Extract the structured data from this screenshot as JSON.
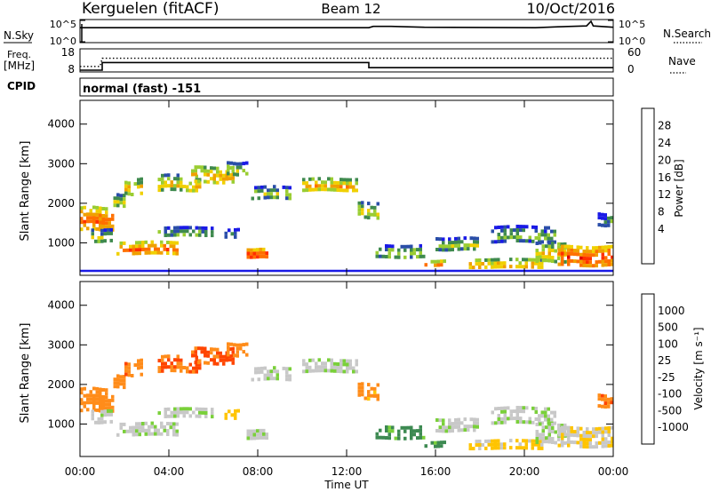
{
  "header": {
    "station": "Kerguelen (fitACF)",
    "beam": "Beam 12",
    "date": "10/Oct/2016"
  },
  "noise_panel": {
    "left_label": "N.Sky",
    "right_label": "N.Search",
    "tick_top": "10^5",
    "tick_bottom": "10^0",
    "sky_level": [
      [
        0,
        3.3
      ],
      [
        13,
        3.3
      ],
      [
        13.2,
        3.6
      ],
      [
        14,
        3.6
      ],
      [
        15.5,
        3.4
      ],
      [
        20.5,
        3.3
      ],
      [
        21.5,
        3.5
      ],
      [
        22.8,
        3.7
      ],
      [
        23,
        4.8
      ],
      [
        23.1,
        3.7
      ],
      [
        24,
        3.4
      ]
    ]
  },
  "freq_panel": {
    "left_label_1": "Freq.",
    "left_label_2": "[MHz]",
    "right_label": "Nave",
    "left_ticks": [
      "18",
      "8"
    ],
    "right_ticks": [
      "60",
      "0"
    ],
    "freq_steps": [
      [
        0,
        8.4
      ],
      [
        1,
        8.4
      ],
      [
        1,
        12.0
      ],
      [
        13,
        12.0
      ],
      [
        13,
        9.6
      ],
      [
        24,
        9.6
      ]
    ],
    "nave_steps": [
      [
        0,
        13
      ],
      [
        0.9,
        13
      ],
      [
        1,
        36
      ],
      [
        24,
        36
      ]
    ]
  },
  "cpid": {
    "label": "CPID",
    "mode": "normal (fast) -151"
  },
  "power_panel": {
    "ylabel": "Slant Range [km]",
    "colorbar_label": "Power [dB]",
    "colorbar_ticks": [
      "28",
      "24",
      "20",
      "16",
      "12",
      "8",
      "4"
    ]
  },
  "velocity_panel": {
    "ylabel": "Slant Range [km]",
    "colorbar_label": "Velocity [m s⁻¹]",
    "colorbar_ticks": [
      "1000",
      "500",
      "100",
      "25",
      "-25",
      "-100",
      "-500",
      "-1000"
    ]
  },
  "time_axis": {
    "label": "Time UT",
    "ticks": [
      "00:00",
      "04:00",
      "08:00",
      "12:00",
      "16:00",
      "20:00",
      "00:00"
    ]
  },
  "range_axis": {
    "ticks": [
      "1000",
      "2000",
      "3000",
      "4000"
    ]
  },
  "chart_data": {
    "type": "heatmap",
    "x_range_hours": [
      0,
      24
    ],
    "y_range_km": [
      180,
      4600
    ],
    "y_ticks": [
      1000,
      2000,
      3000,
      4000
    ],
    "x_ticks_hours": [
      0,
      4,
      8,
      12,
      16,
      20,
      24
    ],
    "power_colorbar": {
      "range": [
        0,
        32
      ],
      "colors": [
        "#1a1ae6",
        "#2a4ea8",
        "#3f8a4e",
        "#9acd32",
        "#f0d000",
        "#f0a000",
        "#ff7000",
        "#ff3000",
        "#e00000"
      ]
    },
    "velocity_colorbar": {
      "levels": [
        -1000,
        -500,
        -100,
        -25,
        25,
        100,
        500,
        1000
      ],
      "colors": [
        "#e00000",
        "#ff4500",
        "#ff8c1a",
        "#ffc400",
        "#c8c8c8",
        "#7ad03a",
        "#3d8a52",
        "#3050a0",
        "#2020c0"
      ]
    },
    "echo_regions": [
      {
        "t0": 0.0,
        "t1": 1.5,
        "r0": 1250,
        "r1": 2000,
        "power": 24,
        "velocity": -300
      },
      {
        "t0": 1.5,
        "t1": 2.0,
        "r0": 1800,
        "r1": 2300,
        "power": 16,
        "velocity": -200
      },
      {
        "t0": 2.0,
        "t1": 2.8,
        "r0": 2100,
        "r1": 2700,
        "power": 18,
        "velocity": -400
      },
      {
        "t0": 0.5,
        "t1": 1.5,
        "r0": 1000,
        "r1": 1400,
        "power": 14,
        "velocity": 10
      },
      {
        "t0": 1.5,
        "t1": 4.5,
        "r0": 600,
        "r1": 1100,
        "power": 24,
        "velocity": 10
      },
      {
        "t0": 3.5,
        "t1": 6.0,
        "r0": 1150,
        "r1": 1450,
        "power": 12,
        "velocity": 10
      },
      {
        "t0": 3.5,
        "t1": 5.5,
        "r0": 2200,
        "r1": 2800,
        "power": 18,
        "velocity": -500
      },
      {
        "t0": 5.0,
        "t1": 7.0,
        "r0": 2400,
        "r1": 3000,
        "power": 20,
        "velocity": -600
      },
      {
        "t0": 6.6,
        "t1": 7.6,
        "r0": 2600,
        "r1": 3100,
        "power": 14,
        "velocity": -300
      },
      {
        "t0": 6.5,
        "t1": 7.2,
        "r0": 1100,
        "r1": 1400,
        "power": 10,
        "velocity": -60
      },
      {
        "t0": 7.5,
        "t1": 8.5,
        "r0": 600,
        "r1": 900,
        "power": 28,
        "velocity": 10
      },
      {
        "t0": 7.7,
        "t1": 9.5,
        "r0": 2000,
        "r1": 2500,
        "power": 14,
        "velocity": 10
      },
      {
        "t0": 10.0,
        "t1": 12.5,
        "r0": 2200,
        "r1": 2700,
        "power": 20,
        "velocity": 10
      },
      {
        "t0": 12.5,
        "t1": 13.5,
        "r0": 1500,
        "r1": 2100,
        "power": 16,
        "velocity": -150
      },
      {
        "t0": 13.3,
        "t1": 15.5,
        "r0": 600,
        "r1": 1000,
        "power": 14,
        "velocity": 150
      },
      {
        "t0": 15.5,
        "t1": 16.5,
        "r0": 350,
        "r1": 600,
        "power": 22,
        "velocity": 150
      },
      {
        "t0": 16.0,
        "t1": 18.0,
        "r0": 700,
        "r1": 1200,
        "power": 14,
        "velocity": 10
      },
      {
        "t0": 17.5,
        "t1": 21.0,
        "r0": 300,
        "r1": 650,
        "power": 20,
        "velocity": -40
      },
      {
        "t0": 18.5,
        "t1": 21.5,
        "r0": 900,
        "r1": 1500,
        "power": 12,
        "velocity": 10
      },
      {
        "t0": 20.5,
        "t1": 22.0,
        "r0": 400,
        "r1": 1100,
        "power": 18,
        "velocity": 10
      },
      {
        "t0": 21.5,
        "t1": 24.0,
        "r0": 350,
        "r1": 1000,
        "power": 26,
        "velocity": -20
      },
      {
        "t0": 23.3,
        "t1": 24.0,
        "r0": 1400,
        "r1": 1800,
        "power": 10,
        "velocity": -400
      }
    ]
  }
}
